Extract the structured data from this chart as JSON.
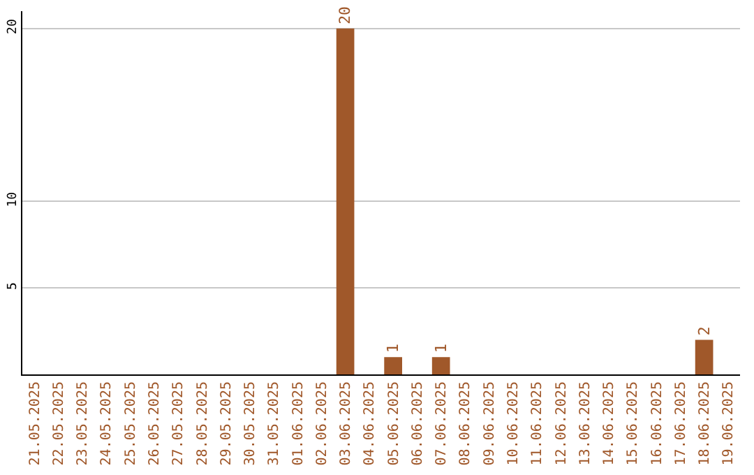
{
  "chart_data": {
    "type": "bar",
    "categories": [
      "21.05.2025",
      "22.05.2025",
      "23.05.2025",
      "24.05.2025",
      "25.05.2025",
      "26.05.2025",
      "27.05.2025",
      "28.05.2025",
      "29.05.2025",
      "30.05.2025",
      "31.05.2025",
      "01.06.2025",
      "02.06.2025",
      "03.06.2025",
      "04.06.2025",
      "05.06.2025",
      "06.06.2025",
      "07.06.2025",
      "08.06.2025",
      "09.06.2025",
      "10.06.2025",
      "11.06.2025",
      "12.06.2025",
      "13.06.2025",
      "14.06.2025",
      "15.06.2025",
      "16.06.2025",
      "17.06.2025",
      "18.06.2025",
      "19.06.2025"
    ],
    "values": [
      0,
      0,
      0,
      0,
      0,
      0,
      0,
      0,
      0,
      0,
      0,
      0,
      0,
      20,
      0,
      1,
      0,
      1,
      0,
      0,
      0,
      0,
      0,
      0,
      0,
      0,
      0,
      0,
      2,
      0
    ],
    "value_labels": [
      null,
      null,
      null,
      null,
      null,
      null,
      null,
      null,
      null,
      null,
      null,
      null,
      null,
      "20",
      null,
      "1",
      null,
      "1",
      null,
      null,
      null,
      null,
      null,
      null,
      null,
      null,
      null,
      null,
      "2",
      null
    ],
    "color": "#a0582a",
    "ylim": [
      0,
      21
    ],
    "yticks": [
      5,
      10,
      20
    ],
    "grid": "y"
  }
}
